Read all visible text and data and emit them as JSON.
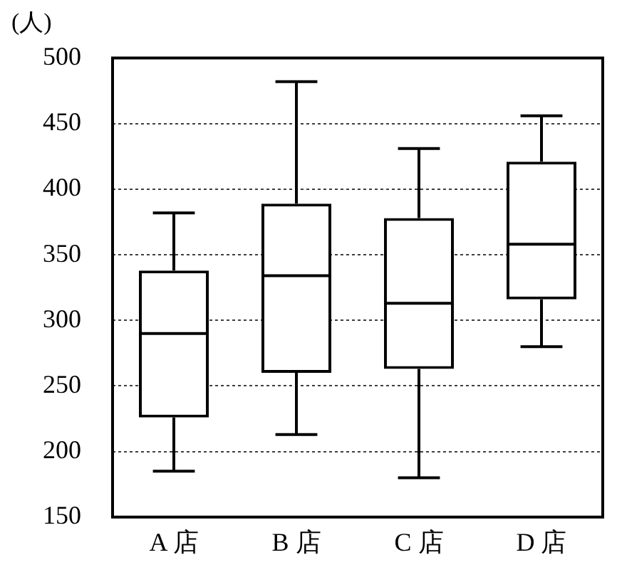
{
  "chart_data": {
    "type": "box",
    "ylabel": "(人)",
    "categories": [
      "A 店",
      "B 店",
      "C 店",
      "D 店"
    ],
    "boxes": [
      {
        "low": 185,
        "q1": 226,
        "median": 290,
        "q3": 338,
        "high": 382
      },
      {
        "low": 213,
        "q1": 260,
        "median": 334,
        "q3": 389,
        "high": 482
      },
      {
        "low": 180,
        "q1": 263,
        "median": 313,
        "q3": 378,
        "high": 431
      },
      {
        "low": 280,
        "q1": 316,
        "median": 358,
        "q3": 421,
        "high": 456
      }
    ],
    "color": "#000000",
    "ylim": [
      150,
      500
    ],
    "yticks": [
      150,
      200,
      250,
      300,
      350,
      400,
      450,
      500
    ],
    "grid": "y"
  }
}
